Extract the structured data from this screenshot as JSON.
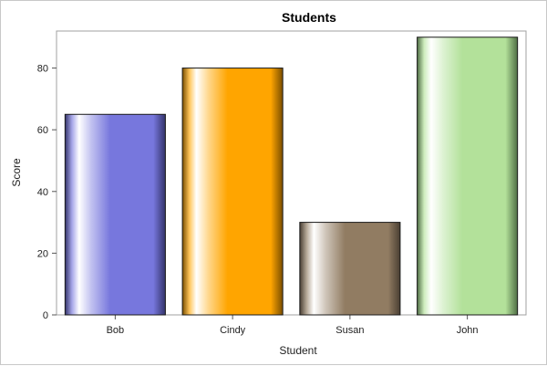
{
  "chart_data": {
    "type": "bar",
    "title": "Students",
    "xlabel": "Student",
    "ylabel": "Score",
    "categories": [
      "Bob",
      "Cindy",
      "Susan",
      "John"
    ],
    "values": [
      65,
      80,
      30,
      90
    ],
    "ylim": [
      0,
      92
    ],
    "yticks": [
      0,
      20,
      40,
      60,
      80
    ],
    "grid": false,
    "legend": "none",
    "colors": [
      "#7777dd",
      "#ffa500",
      "#917c62",
      "#b3e19a"
    ],
    "edge_colors": [
      "#33336a",
      "#7a4e00",
      "#4a3f33",
      "#4f6e44"
    ]
  }
}
